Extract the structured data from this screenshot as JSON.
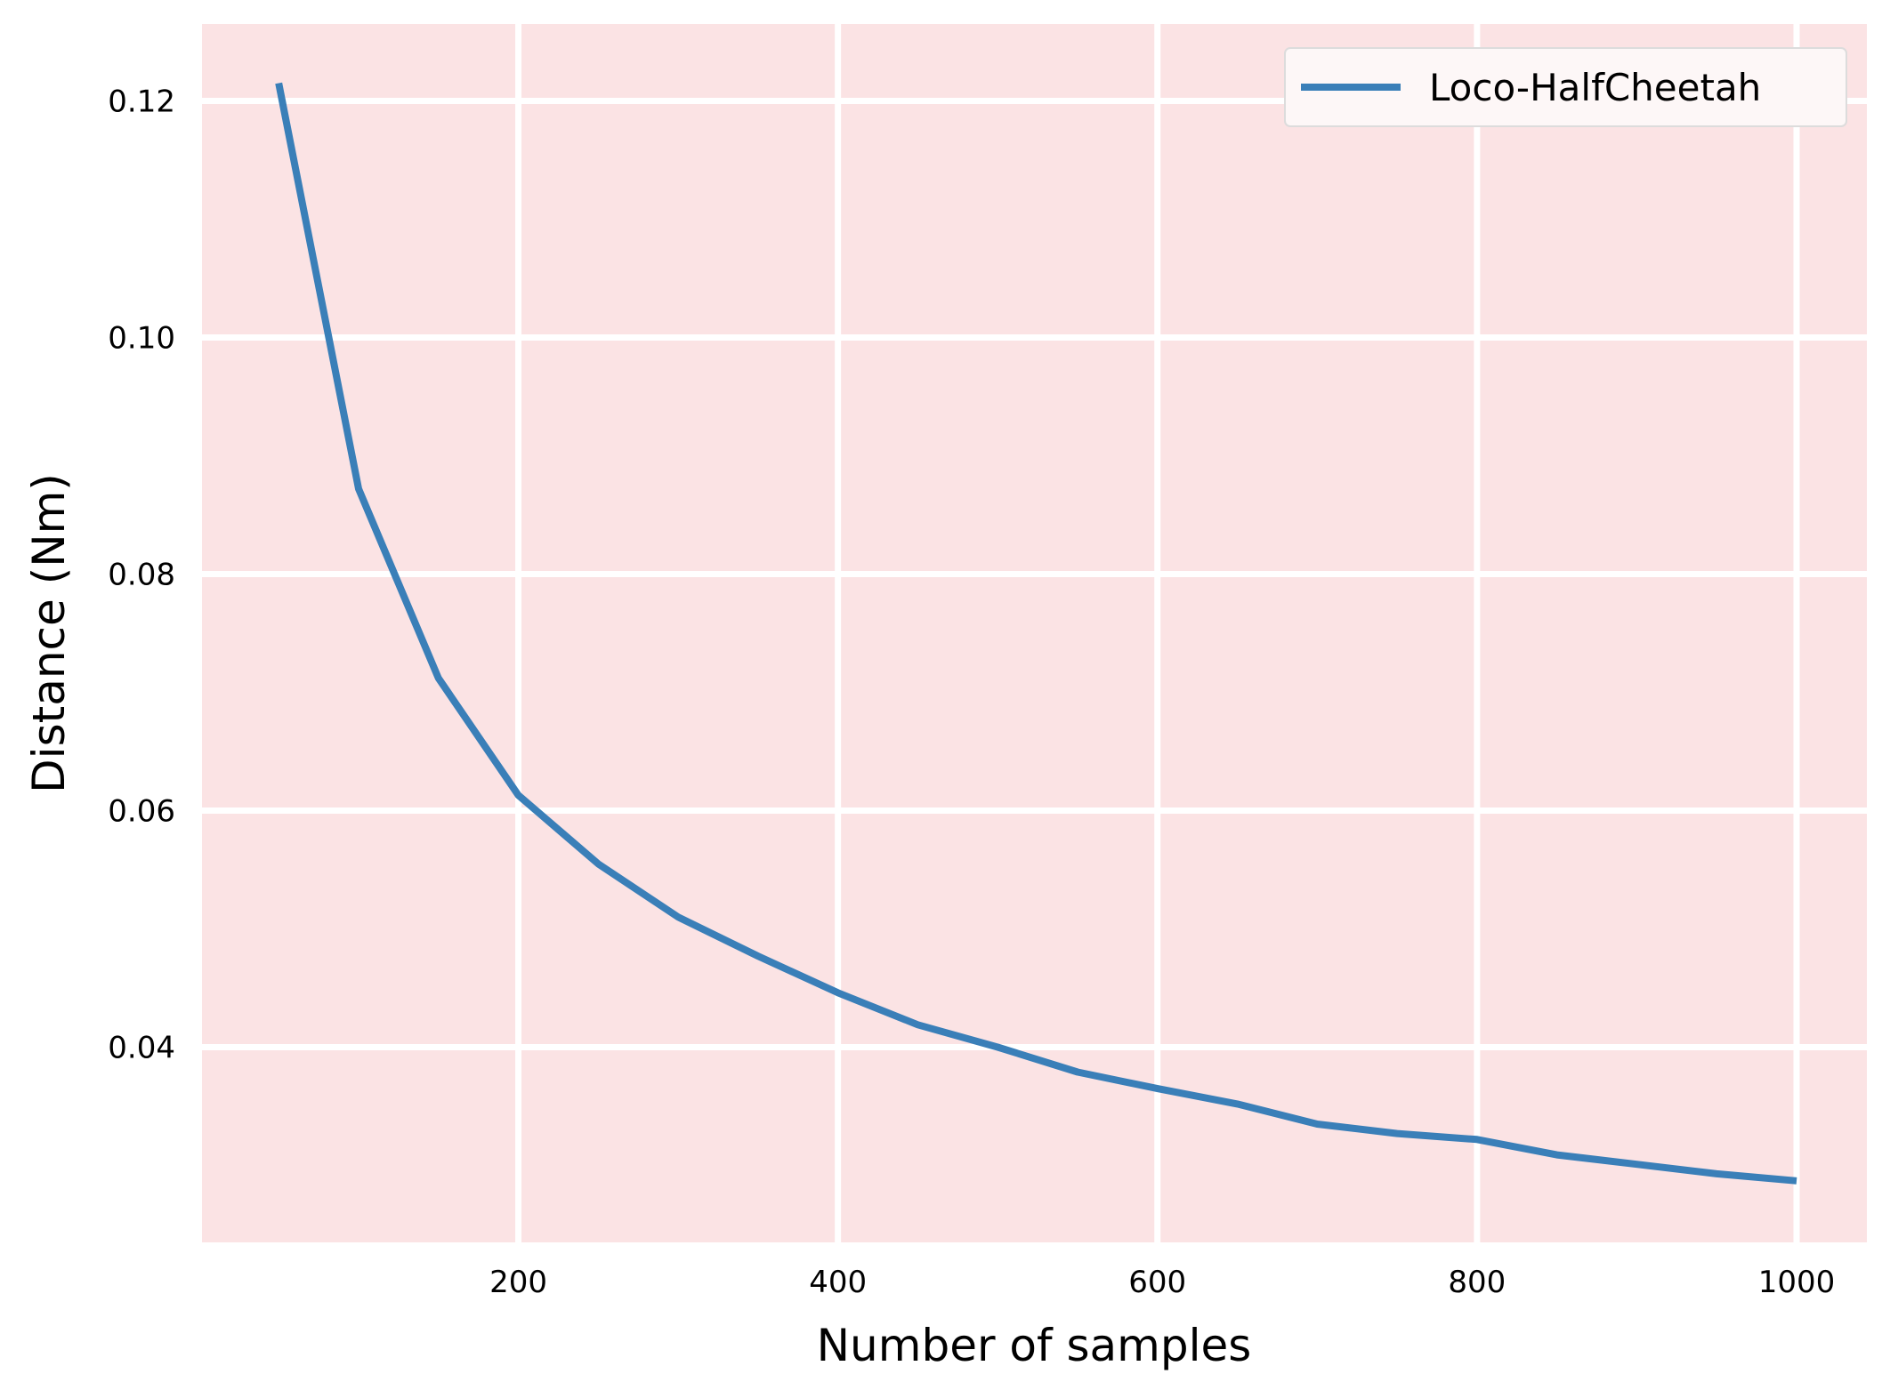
{
  "chart_data": {
    "type": "line",
    "title": "",
    "xlabel": "Number of samples",
    "ylabel": "Distance (Nm)",
    "xlim": [
      2,
      1044
    ],
    "ylim": [
      0.0235,
      0.1265
    ],
    "xticks": [
      200,
      400,
      600,
      800,
      1000
    ],
    "xtick_labels": [
      "200",
      "400",
      "600",
      "800",
      "1000"
    ],
    "yticks": [
      0.04,
      0.06,
      0.08,
      0.1,
      0.12
    ],
    "ytick_labels": [
      "0.04",
      "0.06",
      "0.08",
      "0.10",
      "0.12"
    ],
    "grid": true,
    "legend_position": "top-right",
    "colors": {
      "plot_background": "#fbe3e4",
      "grid": "#ffffff",
      "line": "#3a7fb8"
    },
    "series": [
      {
        "name": "Loco-HalfCheetah",
        "x": [
          50,
          100,
          150,
          200,
          250,
          300,
          350,
          400,
          450,
          500,
          550,
          600,
          650,
          700,
          750,
          800,
          850,
          900,
          950,
          1000
        ],
        "values": [
          0.1215,
          0.0872,
          0.0712,
          0.0613,
          0.0555,
          0.051,
          0.0477,
          0.0446,
          0.0419,
          0.04,
          0.0379,
          0.0365,
          0.0352,
          0.0335,
          0.0327,
          0.0322,
          0.0309,
          0.0301,
          0.0293,
          0.0287
        ]
      }
    ]
  }
}
